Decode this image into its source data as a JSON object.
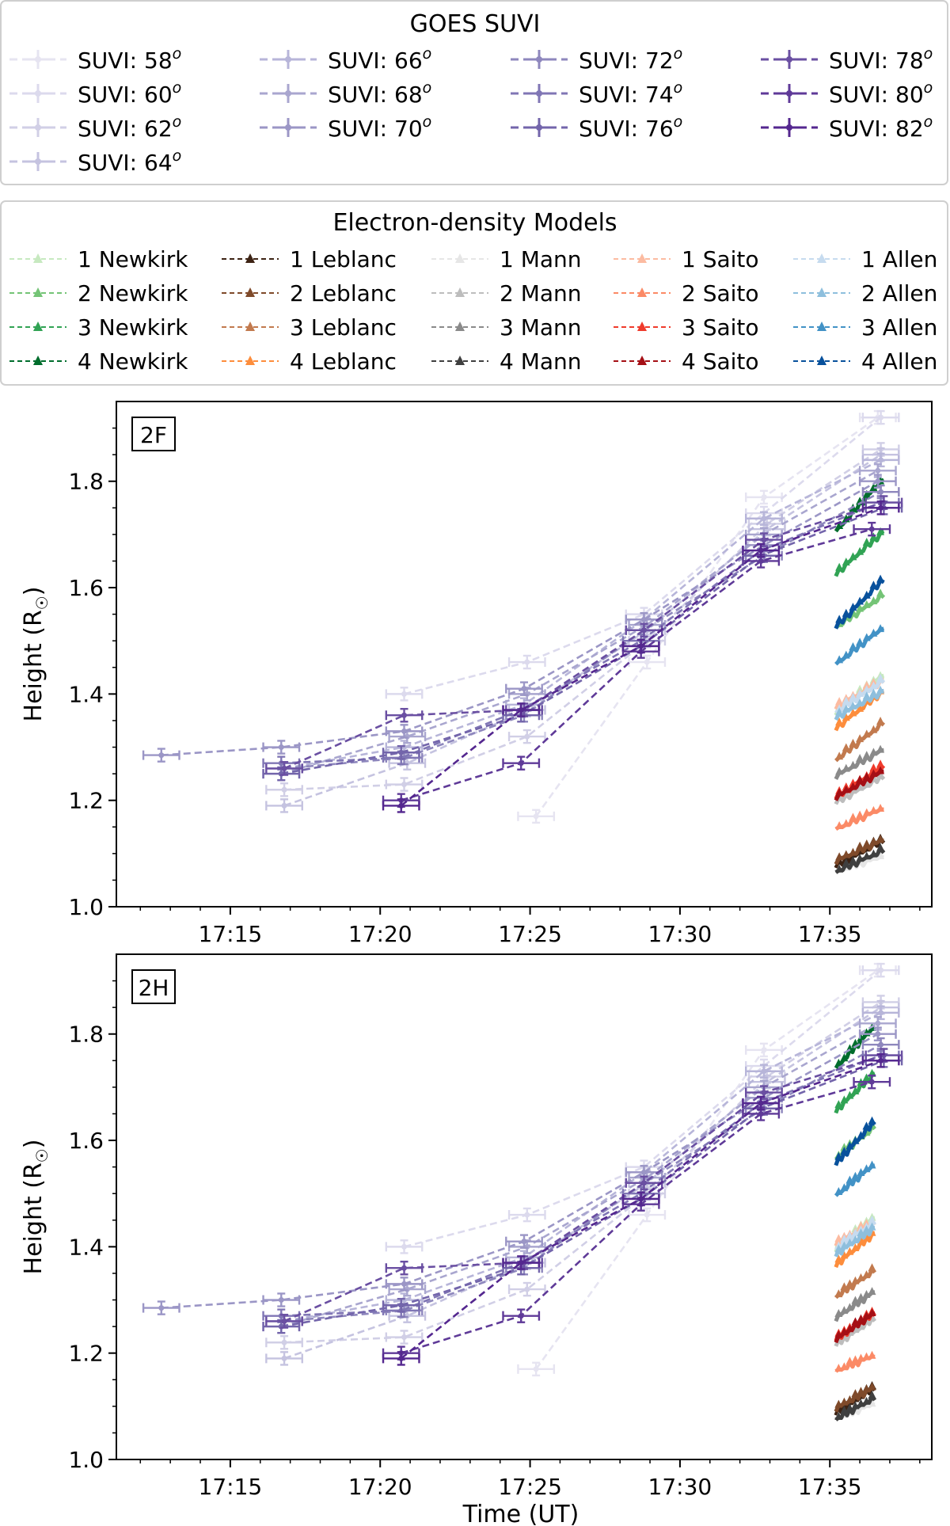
{
  "suvi_legend": {
    "title": "GOES SUVI",
    "entries": [
      {
        "label": "SUVI: 58",
        "sup": "o",
        "color": "#e6e4f1"
      },
      {
        "label": "SUVI: 60",
        "sup": "o",
        "color": "#dcdaed"
      },
      {
        "label": "SUVI: 62",
        "sup": "o",
        "color": "#d1cfe6"
      },
      {
        "label": "SUVI: 64",
        "sup": "o",
        "color": "#c5c3e0"
      },
      {
        "label": "SUVI: 66",
        "sup": "o",
        "color": "#b7b5d9"
      },
      {
        "label": "SUVI: 68",
        "sup": "o",
        "color": "#a9a6cf"
      },
      {
        "label": "SUVI: 70",
        "sup": "o",
        "color": "#9b96c6"
      },
      {
        "label": "SUVI: 72",
        "sup": "o",
        "color": "#8e87bd"
      },
      {
        "label": "SUVI: 74",
        "sup": "o",
        "color": "#8076b5"
      },
      {
        "label": "SUVI: 76",
        "sup": "o",
        "color": "#7365ab"
      },
      {
        "label": "SUVI: 78",
        "sup": "o",
        "color": "#6a4fa2"
      },
      {
        "label": "SUVI: 80",
        "sup": "o",
        "color": "#5f3a98"
      },
      {
        "label": "SUVI: 82",
        "sup": "o",
        "color": "#54278f"
      }
    ]
  },
  "model_legend": {
    "title": "Electron-density Models",
    "entries": [
      {
        "label": "1 Newkirk",
        "color": "#c7e9c0"
      },
      {
        "label": "2 Newkirk",
        "color": "#74c476"
      },
      {
        "label": "3 Newkirk",
        "color": "#31a354"
      },
      {
        "label": "4 Newkirk",
        "color": "#006d2c"
      },
      {
        "label": "1 Leblanc",
        "color": "#3d2314"
      },
      {
        "label": "2 Leblanc",
        "color": "#7f4a2a"
      },
      {
        "label": "3 Leblanc",
        "color": "#c27a4e"
      },
      {
        "label": "4 Leblanc",
        "color": "#fd8d3c"
      },
      {
        "label": "1 Mann",
        "color": "#e6e6e6"
      },
      {
        "label": "2 Mann",
        "color": "#bdbdbd"
      },
      {
        "label": "3 Mann",
        "color": "#8a8a8a"
      },
      {
        "label": "4 Mann",
        "color": "#3f3f3f"
      },
      {
        "label": "1 Saito",
        "color": "#fcbba1"
      },
      {
        "label": "2 Saito",
        "color": "#fb8a66"
      },
      {
        "label": "3 Saito",
        "color": "#ef3b2c"
      },
      {
        "label": "4 Saito",
        "color": "#a50f15"
      },
      {
        "label": "1 Allen",
        "color": "#c6dbef"
      },
      {
        "label": "2 Allen",
        "color": "#8ebfdd"
      },
      {
        "label": "3 Allen",
        "color": "#4292c6"
      },
      {
        "label": "4 Allen",
        "color": "#08519c"
      }
    ]
  },
  "chart_data": [
    {
      "type": "line",
      "panel_label": "2F",
      "xlabel": "",
      "ylabel": "Height (R",
      "ylabel_sub": "☉",
      "ylim": [
        1.0,
        1.95
      ],
      "xlim_minutes": [
        11.2,
        38.4
      ],
      "xticks": [
        {
          "label": "17:15",
          "min": 15
        },
        {
          "label": "17:20",
          "min": 20
        },
        {
          "label": "17:25",
          "min": 25
        },
        {
          "label": "17:30",
          "min": 30
        },
        {
          "label": "17:35",
          "min": 35
        }
      ],
      "yticks": [
        1.0,
        1.2,
        1.4,
        1.6,
        1.8
      ],
      "suvi_series": [
        {
          "name": "SUVI: 58",
          "x": [
            25.2,
            28.9,
            32.8,
            36.6
          ],
          "y": [
            1.17,
            1.46,
            1.77,
            1.92
          ]
        },
        {
          "name": "SUVI: 60",
          "x": [
            20.8,
            24.9,
            28.8,
            32.8,
            36.7
          ],
          "y": [
            1.4,
            1.46,
            1.55,
            1.74,
            1.92
          ]
        },
        {
          "name": "SUVI: 62",
          "x": [
            16.8,
            20.8,
            24.9,
            28.9,
            32.9,
            36.7
          ],
          "y": [
            1.22,
            1.23,
            1.32,
            1.5,
            1.72,
            1.86
          ]
        },
        {
          "name": "SUVI: 64",
          "x": [
            16.8,
            20.9,
            24.9,
            28.9,
            32.9,
            36.7
          ],
          "y": [
            1.19,
            1.27,
            1.37,
            1.52,
            1.71,
            1.85
          ]
        },
        {
          "name": "SUVI: 66",
          "x": [
            16.8,
            20.8,
            24.8,
            28.8,
            32.8,
            36.7
          ],
          "y": [
            1.26,
            1.3,
            1.38,
            1.54,
            1.73,
            1.84
          ]
        },
        {
          "name": "SUVI: 68",
          "x": [
            16.7,
            20.9,
            24.9,
            28.9,
            32.8,
            36.6
          ],
          "y": [
            1.25,
            1.32,
            1.4,
            1.53,
            1.7,
            1.82
          ]
        },
        {
          "name": "SUVI: 70",
          "x": [
            12.7,
            16.7,
            20.8,
            24.8,
            28.8,
            32.8,
            36.6
          ],
          "y": [
            1.285,
            1.3,
            1.33,
            1.41,
            1.54,
            1.68,
            1.8
          ]
        },
        {
          "name": "SUVI: 72",
          "x": [
            16.8,
            20.8,
            24.8,
            28.8,
            32.8,
            36.7
          ],
          "y": [
            1.26,
            1.28,
            1.36,
            1.52,
            1.66,
            1.78
          ]
        },
        {
          "name": "SUVI: 74",
          "x": [
            16.7,
            20.7,
            24.7,
            28.7,
            32.7,
            36.7
          ],
          "y": [
            1.27,
            1.28,
            1.37,
            1.5,
            1.67,
            1.76
          ]
        },
        {
          "name": "SUVI: 76",
          "x": [
            16.7,
            20.7,
            24.7,
            28.7,
            32.7,
            36.8
          ],
          "y": [
            1.25,
            1.29,
            1.36,
            1.49,
            1.66,
            1.75
          ]
        },
        {
          "name": "SUVI: 78",
          "x": [
            16.8,
            20.8,
            24.8,
            28.8,
            32.8,
            36.8
          ],
          "y": [
            1.26,
            1.36,
            1.37,
            1.52,
            1.69,
            1.76
          ]
        },
        {
          "name": "SUVI: 80",
          "x": [
            20.7,
            24.7,
            28.7,
            32.7,
            36.4
          ],
          "y": [
            1.2,
            1.27,
            1.48,
            1.65,
            1.71
          ]
        },
        {
          "name": "SUVI: 82",
          "x": [
            20.7,
            24.7,
            28.7,
            32.7,
            36.7
          ],
          "y": [
            1.19,
            1.37,
            1.49,
            1.67,
            1.75
          ]
        }
      ],
      "model_tracks": [
        {
          "name": "1 Newkirk",
          "y": [
            1.36,
            1.43
          ]
        },
        {
          "name": "2 Newkirk",
          "y": [
            1.52,
            1.58
          ]
        },
        {
          "name": "3 Newkirk",
          "y": [
            1.62,
            1.7
          ]
        },
        {
          "name": "4 Newkirk",
          "y": [
            1.7,
            1.8
          ]
        },
        {
          "name": "1 Leblanc",
          "y": [
            1.07,
            1.12
          ]
        },
        {
          "name": "2 Leblanc",
          "y": [
            1.08,
            1.12
          ]
        },
        {
          "name": "3 Leblanc",
          "y": [
            1.27,
            1.34
          ]
        },
        {
          "name": "4 Leblanc",
          "y": [
            1.33,
            1.4
          ]
        },
        {
          "name": "1 Mann",
          "y": [
            1.06,
            1.09
          ]
        },
        {
          "name": "2 Mann",
          "y": [
            1.19,
            1.24
          ]
        },
        {
          "name": "3 Mann",
          "y": [
            1.24,
            1.29
          ]
        },
        {
          "name": "4 Mann",
          "y": [
            1.06,
            1.1
          ]
        },
        {
          "name": "1 Saito",
          "y": [
            1.37,
            1.42
          ]
        },
        {
          "name": "2 Saito",
          "y": [
            1.14,
            1.18
          ]
        },
        {
          "name": "3 Saito",
          "y": [
            1.2,
            1.26
          ]
        },
        {
          "name": "4 Saito",
          "y": [
            1.2,
            1.25
          ]
        },
        {
          "name": "1 Allen",
          "y": [
            1.36,
            1.42
          ]
        },
        {
          "name": "2 Allen",
          "y": [
            1.35,
            1.4
          ]
        },
        {
          "name": "3 Allen",
          "y": [
            1.45,
            1.52
          ]
        },
        {
          "name": "4 Allen",
          "y": [
            1.52,
            1.61
          ]
        }
      ],
      "model_x_range_minutes": [
        35.2,
        36.8
      ]
    },
    {
      "type": "line",
      "panel_label": "2H",
      "xlabel": "Time (UT)",
      "ylabel": "Height (R",
      "ylabel_sub": "☉",
      "ylim": [
        1.0,
        1.95
      ],
      "xlim_minutes": [
        11.2,
        38.4
      ],
      "xticks": [
        {
          "label": "17:15",
          "min": 15
        },
        {
          "label": "17:20",
          "min": 20
        },
        {
          "label": "17:25",
          "min": 25
        },
        {
          "label": "17:30",
          "min": 30
        },
        {
          "label": "17:35",
          "min": 35
        }
      ],
      "yticks": [
        1.0,
        1.2,
        1.4,
        1.6,
        1.8
      ],
      "suvi_series": [
        {
          "name": "SUVI: 58",
          "x": [
            25.2,
            28.9,
            32.8,
            36.6
          ],
          "y": [
            1.17,
            1.46,
            1.77,
            1.92
          ]
        },
        {
          "name": "SUVI: 60",
          "x": [
            20.8,
            24.9,
            28.8,
            32.8,
            36.7
          ],
          "y": [
            1.4,
            1.46,
            1.55,
            1.74,
            1.92
          ]
        },
        {
          "name": "SUVI: 62",
          "x": [
            16.8,
            20.8,
            24.9,
            28.9,
            32.9,
            36.7
          ],
          "y": [
            1.22,
            1.23,
            1.32,
            1.5,
            1.72,
            1.86
          ]
        },
        {
          "name": "SUVI: 64",
          "x": [
            16.8,
            20.9,
            24.9,
            28.9,
            32.9,
            36.7
          ],
          "y": [
            1.19,
            1.27,
            1.37,
            1.52,
            1.71,
            1.85
          ]
        },
        {
          "name": "SUVI: 66",
          "x": [
            16.8,
            20.8,
            24.8,
            28.8,
            32.8,
            36.7
          ],
          "y": [
            1.26,
            1.3,
            1.38,
            1.54,
            1.73,
            1.84
          ]
        },
        {
          "name": "SUVI: 68",
          "x": [
            16.7,
            20.9,
            24.9,
            28.9,
            32.8,
            36.6
          ],
          "y": [
            1.25,
            1.32,
            1.4,
            1.53,
            1.7,
            1.82
          ]
        },
        {
          "name": "SUVI: 70",
          "x": [
            12.7,
            16.7,
            20.8,
            24.8,
            28.8,
            32.8,
            36.6
          ],
          "y": [
            1.285,
            1.3,
            1.33,
            1.41,
            1.54,
            1.68,
            1.8
          ]
        },
        {
          "name": "SUVI: 72",
          "x": [
            16.8,
            20.8,
            24.8,
            28.8,
            32.8,
            36.7
          ],
          "y": [
            1.26,
            1.28,
            1.36,
            1.52,
            1.66,
            1.78
          ]
        },
        {
          "name": "SUVI: 74",
          "x": [
            16.7,
            20.7,
            24.7,
            28.7,
            32.7,
            36.7
          ],
          "y": [
            1.27,
            1.28,
            1.37,
            1.5,
            1.67,
            1.76
          ]
        },
        {
          "name": "SUVI: 76",
          "x": [
            16.7,
            20.7,
            24.7,
            28.7,
            32.7,
            36.8
          ],
          "y": [
            1.25,
            1.29,
            1.36,
            1.49,
            1.66,
            1.75
          ]
        },
        {
          "name": "SUVI: 78",
          "x": [
            16.8,
            20.8,
            24.8,
            28.8,
            32.8,
            36.8
          ],
          "y": [
            1.26,
            1.36,
            1.37,
            1.52,
            1.69,
            1.76
          ]
        },
        {
          "name": "SUVI: 80",
          "x": [
            20.7,
            24.7,
            28.7,
            32.7,
            36.4
          ],
          "y": [
            1.2,
            1.27,
            1.48,
            1.65,
            1.71
          ]
        },
        {
          "name": "SUVI: 82",
          "x": [
            20.7,
            24.7,
            28.7,
            32.7,
            36.7
          ],
          "y": [
            1.19,
            1.37,
            1.49,
            1.67,
            1.75
          ]
        }
      ],
      "model_tracks": [
        {
          "name": "1 Newkirk",
          "y": [
            1.39,
            1.45
          ]
        },
        {
          "name": "2 Newkirk",
          "y": [
            1.56,
            1.62
          ]
        },
        {
          "name": "3 Newkirk",
          "y": [
            1.65,
            1.72
          ]
        },
        {
          "name": "4 Newkirk",
          "y": [
            1.73,
            1.81
          ]
        },
        {
          "name": "1 Leblanc",
          "y": [
            1.08,
            1.13
          ]
        },
        {
          "name": "2 Leblanc",
          "y": [
            1.09,
            1.13
          ]
        },
        {
          "name": "3 Leblanc",
          "y": [
            1.3,
            1.35
          ]
        },
        {
          "name": "4 Leblanc",
          "y": [
            1.36,
            1.42
          ]
        },
        {
          "name": "1 Mann",
          "y": [
            1.07,
            1.1
          ]
        },
        {
          "name": "2 Mann",
          "y": [
            1.21,
            1.26
          ]
        },
        {
          "name": "3 Mann",
          "y": [
            1.26,
            1.31
          ]
        },
        {
          "name": "4 Mann",
          "y": [
            1.07,
            1.11
          ]
        },
        {
          "name": "1 Saito",
          "y": [
            1.4,
            1.44
          ]
        },
        {
          "name": "2 Saito",
          "y": [
            1.16,
            1.19
          ]
        },
        {
          "name": "3 Saito",
          "y": [
            1.22,
            1.27
          ]
        },
        {
          "name": "4 Saito",
          "y": [
            1.22,
            1.27
          ]
        },
        {
          "name": "1 Allen",
          "y": [
            1.39,
            1.44
          ]
        },
        {
          "name": "2 Allen",
          "y": [
            1.38,
            1.43
          ]
        },
        {
          "name": "3 Allen",
          "y": [
            1.49,
            1.55
          ]
        },
        {
          "name": "4 Allen",
          "y": [
            1.55,
            1.63
          ]
        }
      ],
      "model_x_range_minutes": [
        35.2,
        36.5
      ]
    }
  ]
}
